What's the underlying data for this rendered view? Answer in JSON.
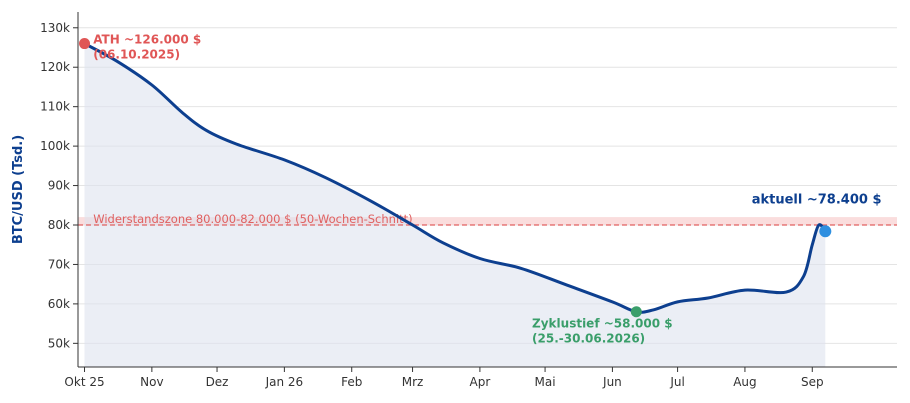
{
  "chart_data": {
    "type": "line",
    "ylabel": "BTC/USD (Tsd.)",
    "xlabel": "",
    "ylim": [
      44,
      134
    ],
    "y_ticks": [
      {
        "v": 50,
        "label": "50k"
      },
      {
        "v": 60,
        "label": "60k"
      },
      {
        "v": 70,
        "label": "70k"
      },
      {
        "v": 80,
        "label": "80k"
      },
      {
        "v": 90,
        "label": "90k"
      },
      {
        "v": 100,
        "label": "100k"
      },
      {
        "v": 110,
        "label": "110k"
      },
      {
        "v": 120,
        "label": "120k"
      },
      {
        "v": 130,
        "label": "130k"
      }
    ],
    "xlim": [
      "2025-09-28",
      "2026-10-10"
    ],
    "x_ticks": [
      {
        "date": "2025-10-01",
        "label": "Okt 25"
      },
      {
        "date": "2025-11-01",
        "label": "Nov"
      },
      {
        "date": "2025-12-01",
        "label": "Dez"
      },
      {
        "date": "2026-01-01",
        "label": "Jan 26"
      },
      {
        "date": "2026-02-01",
        "label": "Feb"
      },
      {
        "date": "2026-03-01",
        "label": "Mrz"
      },
      {
        "date": "2026-04-01",
        "label": "Apr"
      },
      {
        "date": "2026-05-01",
        "label": "Mai"
      },
      {
        "date": "2026-06-01",
        "label": "Jun"
      },
      {
        "date": "2026-07-01",
        "label": "Jul"
      },
      {
        "date": "2026-08-01",
        "label": "Aug"
      },
      {
        "date": "2026-09-01",
        "label": "Sep"
      }
    ],
    "grid": true,
    "series": [
      {
        "color": "#0d3f8f",
        "points": [
          {
            "x": "2025-10-01",
            "y": 126.0
          },
          {
            "x": "2025-10-16",
            "y": 121.5
          },
          {
            "x": "2025-11-01",
            "y": 115.5
          },
          {
            "x": "2025-11-15",
            "y": 108.5
          },
          {
            "x": "2025-11-26",
            "y": 104.0
          },
          {
            "x": "2025-12-10",
            "y": 100.5
          },
          {
            "x": "2026-01-01",
            "y": 96.5
          },
          {
            "x": "2026-01-20",
            "y": 92.0
          },
          {
            "x": "2026-02-10",
            "y": 86.0
          },
          {
            "x": "2026-03-01",
            "y": 80.0
          },
          {
            "x": "2026-03-15",
            "y": 75.5
          },
          {
            "x": "2026-04-01",
            "y": 71.5
          },
          {
            "x": "2026-04-20",
            "y": 69.0
          },
          {
            "x": "2026-05-10",
            "y": 65.0
          },
          {
            "x": "2026-06-01",
            "y": 60.5
          },
          {
            "x": "2026-06-12",
            "y": 58.0
          },
          {
            "x": "2026-06-20",
            "y": 58.5
          },
          {
            "x": "2026-07-01",
            "y": 60.5
          },
          {
            "x": "2026-07-15",
            "y": 61.5
          },
          {
            "x": "2026-08-01",
            "y": 63.5
          },
          {
            "x": "2026-08-20",
            "y": 63.0
          },
          {
            "x": "2026-08-28",
            "y": 67.0
          },
          {
            "x": "2026-09-01",
            "y": 75.0
          },
          {
            "x": "2026-09-04",
            "y": 80.0
          },
          {
            "x": "2026-09-07",
            "y": 78.4
          }
        ]
      }
    ],
    "fill_color": "#dde3ee",
    "resistance": {
      "y": 80,
      "band": [
        80,
        82
      ],
      "label": "Widerstandszone 80.000-82.000 $ (50-Wochen-Schnitt)",
      "color": "#e06060",
      "band_color": "#f9d5d5"
    },
    "markers": [
      {
        "x": "2025-10-01",
        "y": 126.0,
        "color": "#e05656"
      },
      {
        "x": "2026-06-12",
        "y": 58.0,
        "color": "#3a9e6a"
      },
      {
        "x": "2026-09-07",
        "y": 78.4,
        "color": "#2e8fe0"
      }
    ],
    "annotations": [
      {
        "lines": [
          "ATH ~126.000 $",
          "(06.10.2025)"
        ],
        "color": "#e05656",
        "x": "2025-10-05",
        "y": 126.0,
        "anchor": "start",
        "size": 12
      },
      {
        "lines": [
          "Zyklustief ~58.000 $",
          "(25.-30.06.2026)"
        ],
        "color": "#3a9e6a",
        "x": "2026-04-25",
        "y": 54.0,
        "anchor": "start",
        "size": 12
      },
      {
        "lines": [
          "aktuell ~78.400 $"
        ],
        "color": "#0d3f8f",
        "x": "2026-09-03",
        "y": 85.4,
        "anchor": "middle",
        "size": 13
      }
    ]
  }
}
